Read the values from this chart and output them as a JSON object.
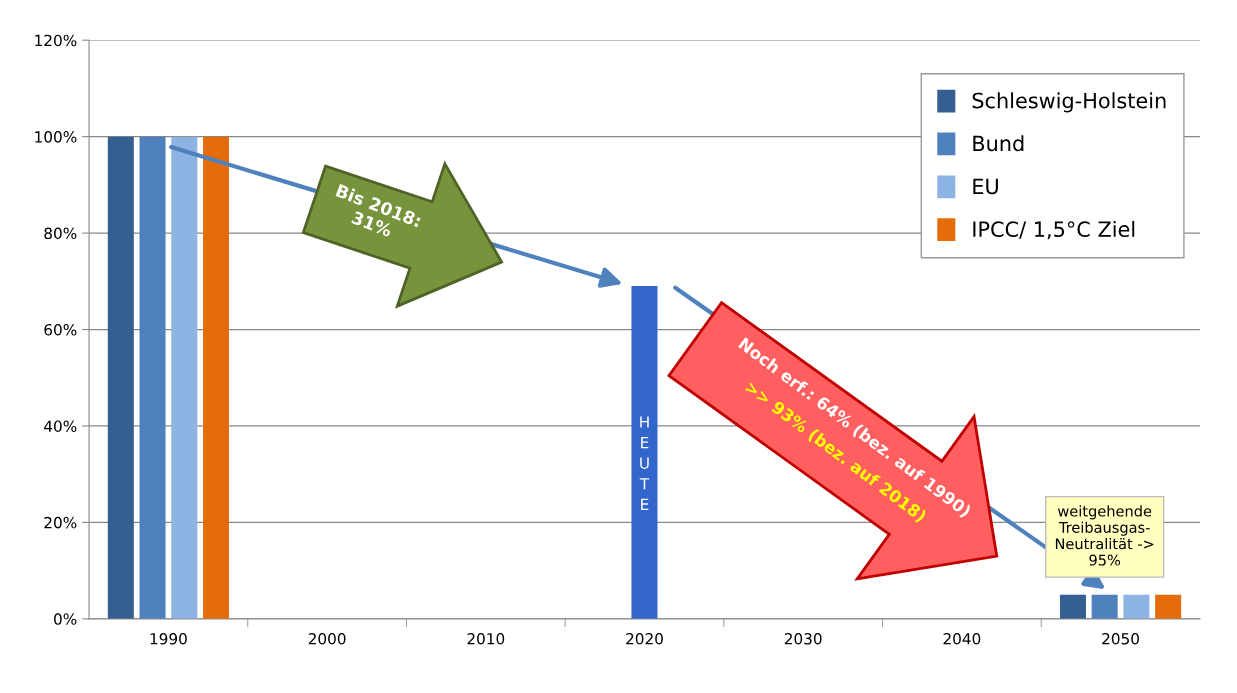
{
  "chart_data": {
    "type": "bar",
    "categories": [
      "1990",
      "2000",
      "2010",
      "2020",
      "2030",
      "2040",
      "2050"
    ],
    "series": [
      {
        "name": "Schleswig-Holstein",
        "color": "#355f91",
        "values": [
          100,
          null,
          null,
          null,
          null,
          null,
          5
        ]
      },
      {
        "name": "Bund",
        "color": "#4f81bd",
        "values": [
          100,
          null,
          null,
          null,
          null,
          null,
          5
        ]
      },
      {
        "name": "EU",
        "color": "#8db3e2",
        "values": [
          100,
          null,
          null,
          null,
          null,
          null,
          5
        ]
      },
      {
        "name": "IPCC/ 1,5°C Ziel",
        "color": "#e46c0a",
        "values": [
          100,
          null,
          null,
          null,
          null,
          null,
          5
        ]
      },
      {
        "color": "#3366cc",
        "values": [
          null,
          null,
          null,
          69,
          null,
          null,
          null
        ]
      }
    ],
    "ylim": [
      0,
      120
    ],
    "yticks": [
      {
        "value": 0,
        "label": "0%"
      },
      {
        "value": 20,
        "label": "20%"
      },
      {
        "value": 40,
        "label": "40%"
      },
      {
        "value": 60,
        "label": "60%"
      },
      {
        "value": 80,
        "label": "80%"
      },
      {
        "value": 100,
        "label": "100%"
      },
      {
        "value": 120,
        "label": "120%"
      }
    ],
    "grid": "y",
    "legend": "top right",
    "annotations": [
      "HEUTE",
      "Bis 2018:\n31%",
      "Noch erf.: 64% (bez. auf 1990)",
      ">> 93% (bez. auf 2018)",
      "weitgehende\nTreibausgas-\nNeutralität ->\n95%"
    ]
  }
}
